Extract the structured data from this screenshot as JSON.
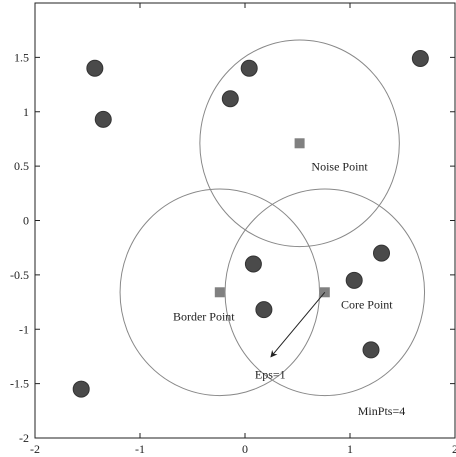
{
  "chart_data": {
    "type": "scatter",
    "title": "",
    "xlabel": "",
    "ylabel": "",
    "xlim": [
      -2,
      2
    ],
    "ylim": [
      -2,
      2
    ],
    "grid": false,
    "x_ticks": [
      -2,
      -1,
      0,
      1,
      2
    ],
    "y_ticks": [
      -2,
      -1.5,
      -1,
      -0.5,
      0,
      0.5,
      1,
      1.5
    ],
    "x_tick_labels": [
      "-2",
      "-1",
      "0",
      "1",
      "2"
    ],
    "y_tick_labels": [
      "-2",
      "-1.5",
      "-1",
      "-0.5",
      "0",
      "0.5",
      "1",
      "1.5"
    ],
    "points": [
      {
        "x": -1.43,
        "y": 1.4
      },
      {
        "x": -1.35,
        "y": 0.93
      },
      {
        "x": 0.04,
        "y": 1.4
      },
      {
        "x": -0.14,
        "y": 1.12
      },
      {
        "x": 1.67,
        "y": 1.49
      },
      {
        "x": 0.08,
        "y": -0.4
      },
      {
        "x": 1.04,
        "y": -0.55
      },
      {
        "x": 1.3,
        "y": -0.3
      },
      {
        "x": 0.18,
        "y": -0.82
      },
      {
        "x": 1.2,
        "y": -1.19
      },
      {
        "x": -1.56,
        "y": -1.55
      }
    ],
    "highlighted_points": [
      {
        "x": 0.52,
        "y": 0.71,
        "label": "Noise Point"
      },
      {
        "x": -0.24,
        "y": -0.66,
        "label": "Border Point"
      },
      {
        "x": 0.76,
        "y": -0.66,
        "label": "Core Point"
      }
    ],
    "circles": [
      {
        "cx": 0.52,
        "cy": 0.71,
        "r": 0.95
      },
      {
        "cx": -0.24,
        "cy": -0.66,
        "r": 0.95
      },
      {
        "cx": 0.76,
        "cy": -0.66,
        "r": 0.95
      }
    ],
    "labels": {
      "noise": "Noise Point",
      "border": "Border Point",
      "core": "Core Point",
      "eps": "Eps=1",
      "minpts": "MinPts=4"
    },
    "eps_arrow": {
      "from": [
        0.76,
        -0.66
      ],
      "to": [
        0.25,
        -1.25
      ]
    }
  },
  "colors": {
    "point": "#4a4a4a",
    "square": "#808080",
    "circle": "#888888",
    "axis": "#222222"
  }
}
